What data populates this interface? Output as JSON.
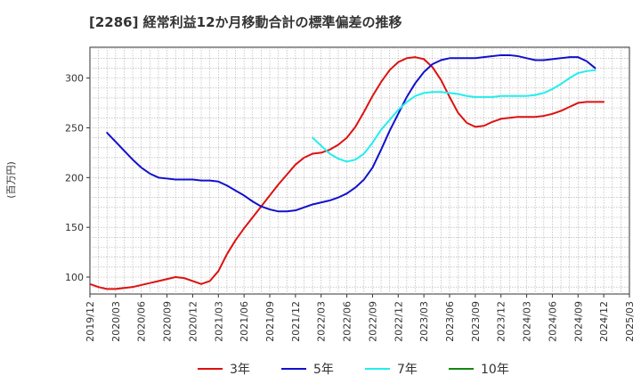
{
  "chart_data": {
    "type": "line",
    "title": "[2286]  経常利益12か月移動合計の標準偏差の推移",
    "ylabel": "(百万円)",
    "xlabel": "",
    "ylim": [
      83,
      331
    ],
    "xlim": [
      "2019-12",
      "2025-03"
    ],
    "grid": true,
    "legend_position": "bottom",
    "y_ticks": [
      100,
      150,
      200,
      250,
      300
    ],
    "x_ticks": [
      "2019/12",
      "2020/03",
      "2020/06",
      "2020/09",
      "2020/12",
      "2021/03",
      "2021/06",
      "2021/09",
      "2021/12",
      "2022/03",
      "2022/06",
      "2022/09",
      "2022/12",
      "2023/03",
      "2023/06",
      "2023/09",
      "2023/12",
      "2024/03",
      "2024/06",
      "2024/09",
      "2024/12",
      "2025/03"
    ],
    "series": [
      {
        "name": "3年",
        "color": "#dd1111",
        "start": "2019-12",
        "values": [
          93,
          90,
          88,
          88,
          89,
          90,
          92,
          94,
          96,
          98,
          100,
          99,
          96,
          93,
          96,
          106,
          123,
          137,
          149,
          160,
          171,
          182,
          193,
          203,
          213,
          220,
          224,
          225,
          228,
          233,
          240,
          251,
          266,
          282,
          296,
          308,
          316,
          320,
          321,
          319,
          311,
          298,
          281,
          265,
          255,
          251,
          252,
          256,
          259,
          260,
          261,
          261,
          261,
          262,
          264,
          267,
          271,
          275,
          276,
          276,
          276
        ]
      },
      {
        "name": "5年",
        "color": "#1111cc",
        "start": "2020-02",
        "values": [
          245,
          236,
          227,
          218,
          210,
          204,
          200,
          199,
          198,
          198,
          198,
          197,
          197,
          196,
          192,
          187,
          182,
          176,
          171,
          168,
          166,
          166,
          167,
          170,
          173,
          175,
          177,
          180,
          184,
          190,
          198,
          210,
          228,
          247,
          264,
          281,
          295,
          306,
          314,
          318,
          320,
          320,
          320,
          320,
          321,
          322,
          323,
          323,
          322,
          320,
          318,
          318,
          319,
          320,
          321,
          321,
          317,
          310
        ]
      },
      {
        "name": "7年",
        "color": "#22eeee",
        "start": "2022-02",
        "values": [
          240,
          232,
          224,
          219,
          216,
          218,
          224,
          235,
          248,
          258,
          268,
          276,
          282,
          285,
          286,
          286,
          285,
          284,
          282,
          281,
          281,
          281,
          282,
          282,
          282,
          282,
          283,
          285,
          289,
          294,
          300,
          305,
          307,
          308
        ]
      },
      {
        "name": "10年",
        "color": "#118811",
        "start": "2019-12",
        "values": []
      }
    ]
  }
}
